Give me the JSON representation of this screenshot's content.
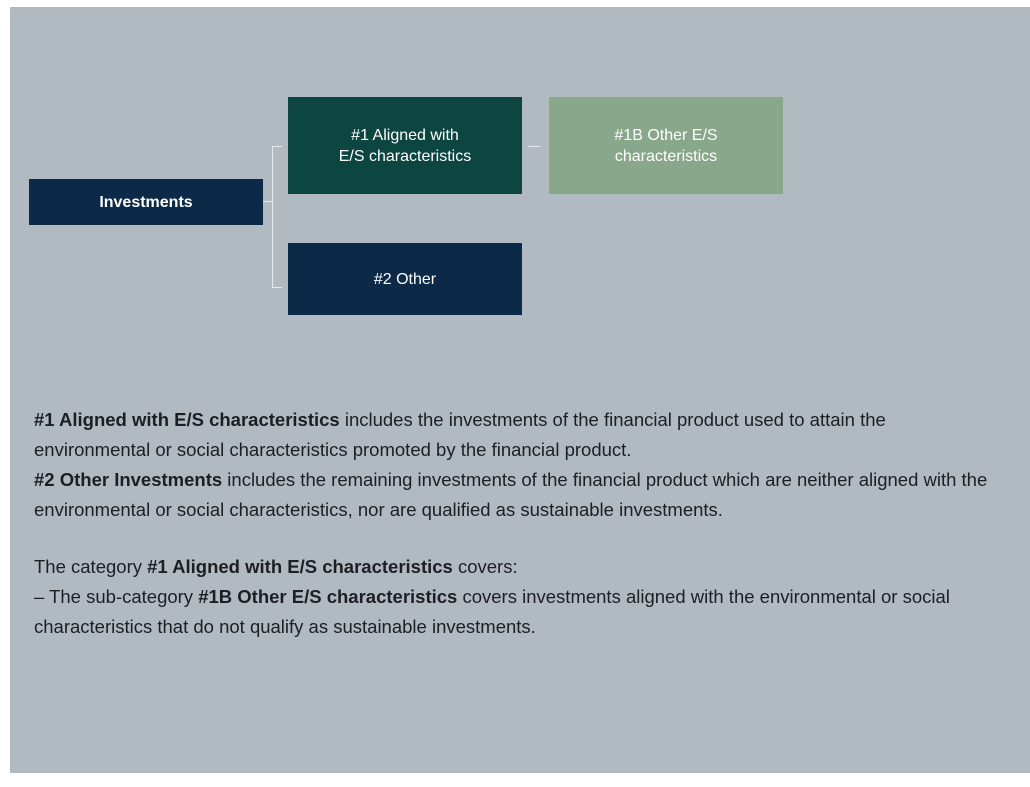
{
  "nodes": [
    {
      "id": "investments",
      "lines": [
        "Investments"
      ],
      "bold": true,
      "color": "#0c2a48"
    },
    {
      "id": "aligned",
      "lines": [
        "#1 Aligned with",
        "E/S characteristics"
      ],
      "bold": false,
      "color": "#0d4540"
    },
    {
      "id": "other-es",
      "lines": [
        "#1B Other E/S",
        "characteristics"
      ],
      "bold": false,
      "color": "#89a78a"
    },
    {
      "id": "other",
      "lines": [
        "#2 Other"
      ],
      "bold": false,
      "color": "#0c2a48"
    }
  ],
  "text": {
    "blocks": [
      [
        [
          {
            "text": "#1 Aligned with E/S characteristics",
            "bold": true
          },
          {
            "text": " includes the investments of the financial product used to attain the environmental or social characteristics promoted by the financial product.",
            "bold": false
          }
        ],
        [
          {
            "text": "#2 Other Investments",
            "bold": true
          },
          {
            "text": " includes the remaining investments of the financial product which are neither aligned with the environmental or social characteristics, nor are qualified as sustainable investments.",
            "bold": false
          }
        ]
      ],
      [
        [
          {
            "text": "The category ",
            "bold": false
          },
          {
            "text": "#1 Aligned with E/S characteristics",
            "bold": true
          },
          {
            "text": " covers:",
            "bold": false
          }
        ],
        [
          {
            "text": "– The sub-category ",
            "bold": false
          },
          {
            "text": "#1B Other E/S characteristics",
            "bold": true
          },
          {
            "text": " covers investments aligned with the environmental or social characteristics that do not qualify as sustainable investments.",
            "bold": false
          }
        ]
      ]
    ]
  }
}
